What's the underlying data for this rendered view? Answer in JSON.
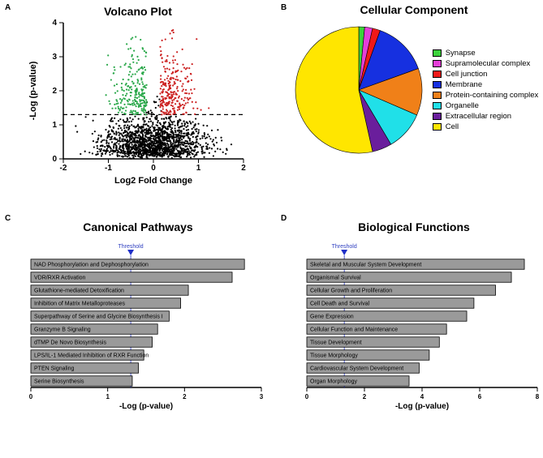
{
  "panelA": {
    "letter": "A",
    "title": "Volcano Plot",
    "xlabel": "Log2 Fold Change",
    "ylabel": "-Log  (p-value)",
    "xlim": [
      -2,
      2
    ],
    "ylim": [
      0,
      4
    ],
    "xticks": [
      -2,
      -1,
      0,
      1,
      2
    ],
    "yticks": [
      0,
      1,
      2,
      3,
      4
    ],
    "threshold_y": 1.3,
    "colors": {
      "ns": "#000000",
      "up": "#cc2222",
      "down": "#2aa84a"
    },
    "seed_counts": {
      "ns": 1600,
      "up": 260,
      "down": 230
    }
  },
  "panelB": {
    "letter": "B",
    "title": "Cellular Component",
    "slices": [
      {
        "label": "Synapse",
        "value": 1.5,
        "color": "#3bd23b"
      },
      {
        "label": "Supramolecular complex",
        "value": 2,
        "color": "#e53fd8"
      },
      {
        "label": "Cell junction",
        "value": 2,
        "color": "#f01818"
      },
      {
        "label": "Membrane",
        "value": 14,
        "color": "#1630e0"
      },
      {
        "label": "Protein-containing complex",
        "value": 12,
        "color": "#f08018"
      },
      {
        "label": "Organelle",
        "value": 10,
        "color": "#20e0e8"
      },
      {
        "label": "Extracellular region",
        "value": 5,
        "color": "#6a1e9c"
      },
      {
        "label": "Cell",
        "value": 53.5,
        "color": "#ffe600"
      }
    ],
    "legend_border": "#000000"
  },
  "panelC": {
    "letter": "C",
    "title": "Canonical Pathways",
    "xlabel": "-Log (p-value)",
    "xlim": [
      0,
      3
    ],
    "xticks": [
      0,
      1,
      2,
      3
    ],
    "threshold": 1.3,
    "threshold_label": "Threshold",
    "bar_color": "#9a9a9a",
    "bar_border": "#000000",
    "tick_color": "#2030c8",
    "bars": [
      {
        "label": "NAD Phosphorylation and Dephosphorylation",
        "value": 2.78
      },
      {
        "label": "VDR/RXR Activation",
        "value": 2.62
      },
      {
        "label": "Glutathione-mediated Detoxification",
        "value": 2.05
      },
      {
        "label": "Inhibition of Matrix Metalloproteases",
        "value": 1.95
      },
      {
        "label": "Superpathway of Serine and Glycine Biosynthesis I",
        "value": 1.8
      },
      {
        "label": "Granzyme B Signaling",
        "value": 1.65
      },
      {
        "label": "dTMP De Novo Biosynthesis",
        "value": 1.58
      },
      {
        "label": "LPS/IL-1 Mediated Inhibition of RXR Function",
        "value": 1.47
      },
      {
        "label": "PTEN Signaling",
        "value": 1.4
      },
      {
        "label": "Serine Biosynthesis",
        "value": 1.32
      }
    ]
  },
  "panelD": {
    "letter": "D",
    "title": "Biological Functions",
    "xlabel": "-Log (p-value)",
    "xlim": [
      0,
      8
    ],
    "xticks": [
      0,
      2,
      4,
      6,
      8
    ],
    "threshold": 1.3,
    "threshold_label": "Threshold",
    "bar_color": "#9a9a9a",
    "bar_border": "#000000",
    "tick_color": "#2030c8",
    "bars": [
      {
        "label": "Skeletal and Muscular System Development",
        "value": 7.55
      },
      {
        "label": "Organismal Survival",
        "value": 7.1
      },
      {
        "label": "Cellular Growth and Proliferation",
        "value": 6.55
      },
      {
        "label": "Cell Death and Survival",
        "value": 5.8
      },
      {
        "label": "Gene Expression",
        "value": 5.55
      },
      {
        "label": "Cellular Function and Maintenance",
        "value": 4.85
      },
      {
        "label": "Tissue Development",
        "value": 4.6
      },
      {
        "label": "Tissue Morphology",
        "value": 4.25
      },
      {
        "label": "Cardiovascular System Development",
        "value": 3.9
      },
      {
        "label": "Organ Morphology",
        "value": 3.55
      }
    ]
  }
}
